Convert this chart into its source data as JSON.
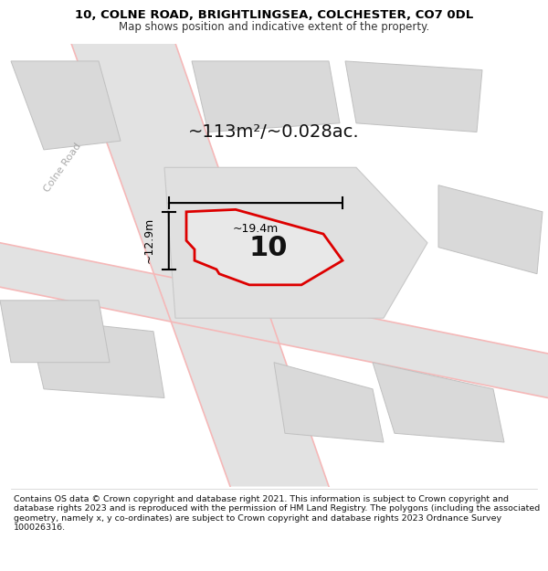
{
  "title_line1": "10, COLNE ROAD, BRIGHTLINGSEA, COLCHESTER, CO7 0DL",
  "title_line2": "Map shows position and indicative extent of the property.",
  "footer_text": "Contains OS data © Crown copyright and database right 2021. This information is subject to Crown copyright and database rights 2023 and is reproduced with the permission of HM Land Registry. The polygons (including the associated geometry, namely x, y co-ordinates) are subject to Crown copyright and database rights 2023 Ordnance Survey 100026316.",
  "area_label": "~113m²/~0.028ac.",
  "number_label": "10",
  "width_label": "~19.4m",
  "height_label": "~12.9m",
  "road_label": "Colne Road",
  "map_bg": "#efefef",
  "building_fill": "#d9d9d9",
  "building_edge": "#c0c0c0",
  "road_fill": "#e8e8e8",
  "road_edge_color": "#f5b8b8",
  "plot_edge_color": "#dd0000",
  "plot_fill_color": "#e8e8e8",
  "dim_color": "#000000",
  "text_color": "#111111",
  "road_label_color": "#aaaaaa",
  "map_xlim": [
    0.0,
    1.0
  ],
  "map_ylim": [
    0.0,
    1.0
  ],
  "title_fontsize": 9.5,
  "subtitle_fontsize": 8.5,
  "area_fontsize": 14,
  "number_fontsize": 22,
  "dim_fontsize": 9,
  "road_label_fontsize": 8,
  "footer_fontsize": 6.8
}
